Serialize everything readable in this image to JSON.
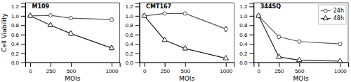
{
  "chart_data": [
    {
      "type": "line",
      "title": "M109",
      "xlabel": "MOIs",
      "ylabel": "Cell Viability",
      "x": [
        0,
        250,
        500,
        1000
      ],
      "series": [
        {
          "color": "#555555",
          "marker": "circle",
          "values": [
            1.0,
            1.01,
            0.95,
            0.92
          ],
          "errors": [
            0.02,
            0.02,
            0.03,
            0.03
          ]
        },
        {
          "color": "#222222",
          "marker": "triangle",
          "values": [
            1.0,
            0.8,
            0.62,
            0.31
          ],
          "errors": [
            0.02,
            0.03,
            0.04,
            0.04
          ]
        }
      ],
      "xlim": [
        -60,
        1100
      ],
      "xticks": [
        0,
        250,
        500,
        1000
      ],
      "ylim": [
        0,
        1.28
      ],
      "yticks": [
        {
          "value": 0,
          "label": "0.0"
        },
        0.2,
        0.4,
        0.6,
        0.8,
        {
          "value": 1.0,
          "label": "1.0"
        },
        1.2
      ],
      "grid": false
    },
    {
      "type": "line",
      "title": "CMT167",
      "xlabel": "MOIs",
      "x": [
        0,
        250,
        500,
        1000
      ],
      "series": [
        {
          "color": "#555555",
          "marker": "circle",
          "values": [
            1.0,
            1.05,
            1.05,
            0.72
          ],
          "errors": [
            0.02,
            0.03,
            0.03,
            0.06
          ]
        },
        {
          "color": "#222222",
          "marker": "triangle",
          "values": [
            1.0,
            0.48,
            0.3,
            0.09
          ],
          "errors": [
            0.02,
            0.03,
            0.03,
            0.02
          ]
        }
      ],
      "xlim": [
        -60,
        1100
      ],
      "xticks": [
        0,
        250,
        500,
        1000
      ],
      "ylim": [
        0,
        1.28
      ],
      "yticks": [
        {
          "value": 0,
          "label": "0.0"
        },
        0.2,
        0.4,
        0.6,
        0.8,
        {
          "value": 1.0,
          "label": "1.0"
        },
        1.2
      ],
      "grid": false
    },
    {
      "type": "line",
      "title": "344SQ",
      "xlabel": "MOIs",
      "x": [
        0,
        250,
        500,
        1000
      ],
      "series": [
        {
          "name": "24h",
          "color": "#555555",
          "marker": "circle",
          "values": [
            1.0,
            0.55,
            0.45,
            0.4
          ],
          "errors": [
            0.02,
            0.04,
            0.03,
            0.03
          ]
        },
        {
          "name": "48h",
          "color": "#222222",
          "marker": "triangle",
          "values": [
            1.0,
            0.12,
            0.05,
            0.03
          ],
          "errors": [
            0.02,
            0.02,
            0.02,
            0.01
          ]
        }
      ],
      "xlim": [
        -60,
        1100
      ],
      "xticks": [
        0,
        250,
        500,
        1000
      ],
      "ylim": [
        0,
        1.28
      ],
      "yticks": [
        {
          "value": 0,
          "label": "0.0"
        },
        0.2,
        0.4,
        0.6,
        0.8,
        {
          "value": 1.0,
          "label": "1.0"
        },
        1.2
      ],
      "grid": false,
      "legend": "upper right"
    }
  ]
}
